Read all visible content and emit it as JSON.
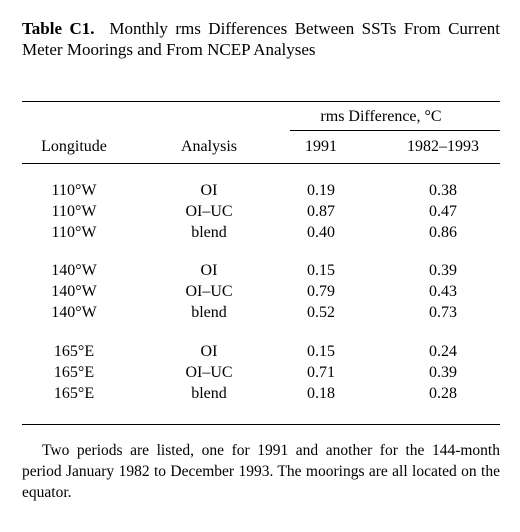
{
  "title": {
    "label": "Table C1.",
    "text": "Monthly rms Differences Between SSTs From Current Meter Moorings and From NCEP Analyses"
  },
  "table": {
    "column_group_label": "rms Difference, °C",
    "columns": [
      "Longitude",
      "Analysis",
      "1991",
      "1982–1993"
    ],
    "row_groups": [
      [
        [
          "110°W",
          "OI",
          "0.19",
          "0.38"
        ],
        [
          "110°W",
          "OI–UC",
          "0.87",
          "0.47"
        ],
        [
          "110°W",
          "blend",
          "0.40",
          "0.86"
        ]
      ],
      [
        [
          "140°W",
          "OI",
          "0.15",
          "0.39"
        ],
        [
          "140°W",
          "OI–UC",
          "0.79",
          "0.43"
        ],
        [
          "140°W",
          "blend",
          "0.52",
          "0.73"
        ]
      ],
      [
        [
          "165°E",
          "OI",
          "0.15",
          "0.24"
        ],
        [
          "165°E",
          "OI–UC",
          "0.71",
          "0.39"
        ],
        [
          "165°E",
          "blend",
          "0.18",
          "0.28"
        ]
      ]
    ]
  },
  "footnote": "Two periods are listed, one for 1991 and another for the 144-month period January 1982 to December 1993. The moorings are all located on the equator."
}
